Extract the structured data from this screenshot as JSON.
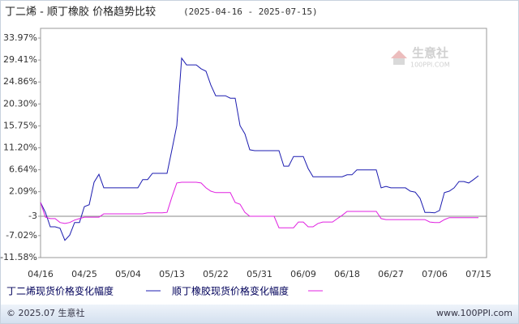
{
  "chart_data": {
    "type": "line",
    "title": "丁二烯 - 顺丁橡胶 价格趋势比较",
    "subtitle": "(2025-04-16 - 2025-07-15)",
    "watermark": {
      "name": "生意社",
      "site": "100PPI.COM"
    },
    "footer": {
      "left": "© 2025.07 生意社",
      "right": "www.100PPI.com"
    },
    "categories": [
      "04/16",
      null,
      null,
      null,
      null,
      null,
      null,
      null,
      null,
      "04/25",
      null,
      null,
      null,
      null,
      null,
      null,
      null,
      null,
      "05/04",
      null,
      null,
      null,
      null,
      null,
      null,
      null,
      null,
      "05/13",
      null,
      null,
      null,
      null,
      null,
      null,
      null,
      null,
      "05/22",
      null,
      null,
      null,
      null,
      null,
      null,
      null,
      null,
      "05/31",
      null,
      null,
      null,
      null,
      null,
      null,
      null,
      null,
      "06/09",
      null,
      null,
      null,
      null,
      null,
      null,
      null,
      null,
      "06/18",
      null,
      null,
      null,
      null,
      null,
      null,
      null,
      null,
      "06/27",
      null,
      null,
      null,
      null,
      null,
      null,
      null,
      null,
      "07/06",
      null,
      null,
      null,
      null,
      null,
      null,
      null,
      null,
      "07/15"
    ],
    "series": [
      {
        "name": "丁二烯现货价格变化幅度",
        "color": "#1c1cb0",
        "values": [
          -0.15,
          -2.2,
          -5.2,
          -5.2,
          -5.5,
          -8.0,
          -6.9,
          -4.3,
          -4.3,
          -1.0,
          -0.6,
          4.05,
          5.7,
          2.9,
          2.9,
          2.9,
          2.9,
          2.9,
          2.9,
          2.9,
          2.9,
          4.6,
          4.6,
          5.9,
          5.9,
          5.9,
          5.9,
          10.8,
          15.8,
          29.8,
          28.4,
          28.4,
          28.4,
          27.6,
          27.1,
          24.2,
          22.0,
          22.0,
          22.0,
          21.5,
          21.5,
          15.8,
          14.1,
          10.8,
          10.6,
          10.6,
          10.6,
          10.6,
          10.6,
          10.6,
          7.4,
          7.4,
          9.4,
          9.4,
          9.4,
          6.9,
          5.2,
          5.2,
          5.2,
          5.2,
          5.2,
          5.2,
          5.2,
          5.6,
          5.6,
          6.6,
          6.6,
          6.6,
          6.6,
          6.6,
          2.9,
          3.2,
          2.9,
          2.9,
          2.9,
          2.9,
          2.2,
          2.0,
          0.7,
          -2.2,
          -2.2,
          -2.3,
          -1.8,
          1.9,
          2.2,
          2.9,
          4.2,
          4.2,
          3.9,
          4.6,
          5.4
        ]
      },
      {
        "name": "顺丁橡胶现货价格变化幅度",
        "color": "#e020e0",
        "values": [
          -0.15,
          -3.2,
          -3.5,
          -3.5,
          -4.3,
          -4.5,
          -4.3,
          -3.8,
          -3.5,
          -3.2,
          -3.2,
          -3.2,
          -3.2,
          -2.5,
          -2.5,
          -2.5,
          -2.5,
          -2.5,
          -2.5,
          -2.5,
          -2.5,
          -2.5,
          -2.3,
          -2.3,
          -2.3,
          -2.3,
          -2.2,
          1.0,
          3.9,
          4.05,
          4.05,
          4.05,
          4.05,
          3.9,
          2.9,
          2.2,
          1.9,
          1.9,
          1.9,
          1.9,
          -0.15,
          -0.5,
          -2.2,
          -3.0,
          -3.0,
          -3.0,
          -3.0,
          -3.0,
          -3.0,
          -5.4,
          -5.4,
          -5.4,
          -5.4,
          -4.2,
          -4.2,
          -5.2,
          -5.2,
          -4.5,
          -4.2,
          -4.2,
          -4.2,
          -3.5,
          -2.8,
          -2.0,
          -2.0,
          -2.0,
          -2.0,
          -2.0,
          -2.0,
          -2.0,
          -3.5,
          -3.7,
          -3.7,
          -3.7,
          -3.7,
          -3.7,
          -3.7,
          -3.7,
          -3.7,
          -3.7,
          -4.2,
          -4.3,
          -4.3,
          -3.7,
          -3.3,
          -3.3,
          -3.3,
          -3.3,
          -3.3,
          -3.3,
          -3.3
        ]
      }
    ],
    "ylim": [
      -11.58,
      33.97
    ],
    "yticks": [
      {
        "value": 33.97,
        "label": "33.97%"
      },
      {
        "value": 29.41,
        "label": "29.41%"
      },
      {
        "value": 24.86,
        "label": "24.86%"
      },
      {
        "value": 20.3,
        "label": "20.30%"
      },
      {
        "value": 15.75,
        "label": "15.75%"
      },
      {
        "value": 11.2,
        "label": "11.20%"
      },
      {
        "value": 6.64,
        "label": "6.64%"
      },
      {
        "value": 2.09,
        "label": "2.09%"
      },
      -3,
      {
        "value": -7.02,
        "label": "-7.02%"
      },
      {
        "value": -11.58,
        "label": "-11.58%"
      }
    ],
    "reference_line": -3
  }
}
